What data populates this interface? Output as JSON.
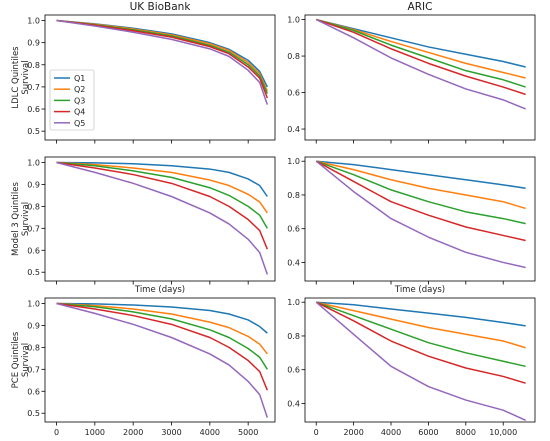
{
  "colors": {
    "Q1": "#1f77b4",
    "Q2": "#ff7f0e",
    "Q3": "#2ca02c",
    "Q4": "#d62728",
    "Q5": "#9467bd"
  },
  "chart_data": [
    {
      "type": "line",
      "column_title": "UK BioBank",
      "ylabel": "LDLC Quintiles\nSurvival",
      "xlabel": "",
      "xlim": [
        -300,
        5700
      ],
      "ylim": [
        0.46,
        1.025
      ],
      "yticks": [
        "0.5",
        "0.6",
        "0.7",
        "0.8",
        "0.9",
        "1.0"
      ],
      "xticks": [],
      "legend": "upper-left",
      "series": [
        {
          "name": "Q1",
          "x": [
            0,
            1000,
            2000,
            3000,
            4000,
            4500,
            5000,
            5300,
            5500
          ],
          "y": [
            1.0,
            0.985,
            0.965,
            0.94,
            0.9,
            0.87,
            0.82,
            0.77,
            0.7
          ]
        },
        {
          "name": "Q2",
          "x": [
            0,
            1000,
            2000,
            3000,
            4000,
            4500,
            5000,
            5300,
            5500
          ],
          "y": [
            1.0,
            0.983,
            0.962,
            0.935,
            0.895,
            0.865,
            0.81,
            0.76,
            0.68
          ]
        },
        {
          "name": "Q3",
          "x": [
            0,
            1000,
            2000,
            3000,
            4000,
            4500,
            5000,
            5300,
            5500
          ],
          "y": [
            1.0,
            0.981,
            0.958,
            0.93,
            0.888,
            0.857,
            0.8,
            0.75,
            0.67
          ]
        },
        {
          "name": "Q4",
          "x": [
            0,
            1000,
            2000,
            3000,
            4000,
            4500,
            5000,
            5300,
            5500
          ],
          "y": [
            1.0,
            0.979,
            0.954,
            0.925,
            0.882,
            0.85,
            0.79,
            0.74,
            0.65
          ]
        },
        {
          "name": "Q5",
          "x": [
            0,
            1000,
            2000,
            3000,
            4000,
            4500,
            5000,
            5300,
            5500
          ],
          "y": [
            1.0,
            0.975,
            0.947,
            0.915,
            0.872,
            0.838,
            0.775,
            0.72,
            0.62
          ]
        }
      ]
    },
    {
      "type": "line",
      "column_title": "ARIC",
      "ylabel": "",
      "xlabel": "",
      "xlim": [
        -600,
        11700
      ],
      "ylim": [
        0.34,
        1.025
      ],
      "yticks": [
        "0.4",
        "0.6",
        "0.8",
        "1.0"
      ],
      "xticks": [],
      "legend": "",
      "series": [
        {
          "name": "Q1",
          "x": [
            0,
            2000,
            4000,
            6000,
            8000,
            10000,
            11200
          ],
          "y": [
            1.0,
            0.95,
            0.9,
            0.85,
            0.81,
            0.77,
            0.74
          ]
        },
        {
          "name": "Q2",
          "x": [
            0,
            2000,
            4000,
            6000,
            8000,
            10000,
            11200
          ],
          "y": [
            1.0,
            0.945,
            0.88,
            0.82,
            0.76,
            0.71,
            0.68
          ]
        },
        {
          "name": "Q3",
          "x": [
            0,
            2000,
            4000,
            6000,
            8000,
            10000,
            11200
          ],
          "y": [
            1.0,
            0.94,
            0.86,
            0.79,
            0.72,
            0.67,
            0.63
          ]
        },
        {
          "name": "Q4",
          "x": [
            0,
            2000,
            4000,
            6000,
            8000,
            10000,
            11200
          ],
          "y": [
            1.0,
            0.93,
            0.84,
            0.76,
            0.69,
            0.63,
            0.59
          ]
        },
        {
          "name": "Q5",
          "x": [
            0,
            2000,
            4000,
            6000,
            8000,
            10000,
            11200
          ],
          "y": [
            1.0,
            0.9,
            0.79,
            0.7,
            0.62,
            0.56,
            0.51
          ]
        }
      ]
    },
    {
      "type": "line",
      "column_title": "",
      "ylabel": "Model 3 Quintiles\nSurvival",
      "xlabel": "Time (days)",
      "xlim": [
        -300,
        5700
      ],
      "ylim": [
        0.46,
        1.025
      ],
      "yticks": [
        "0.5",
        "0.6",
        "0.7",
        "0.8",
        "0.9",
        "1.0"
      ],
      "xticks": [],
      "legend": "",
      "series": [
        {
          "name": "Q1",
          "x": [
            0,
            1000,
            2000,
            3000,
            4000,
            4500,
            5000,
            5300,
            5500
          ],
          "y": [
            1.0,
            0.998,
            0.994,
            0.985,
            0.97,
            0.955,
            0.925,
            0.895,
            0.845
          ]
        },
        {
          "name": "Q2",
          "x": [
            0,
            1000,
            2000,
            3000,
            4000,
            4500,
            5000,
            5300,
            5500
          ],
          "y": [
            1.0,
            0.99,
            0.975,
            0.955,
            0.92,
            0.895,
            0.855,
            0.82,
            0.77
          ]
        },
        {
          "name": "Q3",
          "x": [
            0,
            1000,
            2000,
            3000,
            4000,
            4500,
            5000,
            5300,
            5500
          ],
          "y": [
            1.0,
            0.985,
            0.962,
            0.932,
            0.885,
            0.85,
            0.8,
            0.76,
            0.7
          ]
        },
        {
          "name": "Q4",
          "x": [
            0,
            1000,
            2000,
            3000,
            4000,
            4500,
            5000,
            5300,
            5500
          ],
          "y": [
            1.0,
            0.975,
            0.945,
            0.905,
            0.845,
            0.8,
            0.74,
            0.69,
            0.605
          ]
        },
        {
          "name": "Q5",
          "x": [
            0,
            1000,
            2000,
            3000,
            4000,
            4500,
            5000,
            5300,
            5500
          ],
          "y": [
            1.0,
            0.955,
            0.905,
            0.845,
            0.77,
            0.72,
            0.65,
            0.59,
            0.49
          ]
        }
      ]
    },
    {
      "type": "line",
      "column_title": "",
      "ylabel": "",
      "xlabel": "Time (days)",
      "xlim": [
        -600,
        11700
      ],
      "ylim": [
        0.29,
        1.025
      ],
      "yticks": [
        "0.4",
        "0.6",
        "0.8",
        "1.0"
      ],
      "xticks": [],
      "legend": "",
      "series": [
        {
          "name": "Q1",
          "x": [
            0,
            2000,
            4000,
            6000,
            8000,
            10000,
            11200
          ],
          "y": [
            1.0,
            0.98,
            0.95,
            0.92,
            0.89,
            0.86,
            0.84
          ]
        },
        {
          "name": "Q2",
          "x": [
            0,
            2000,
            4000,
            6000,
            8000,
            10000,
            11200
          ],
          "y": [
            1.0,
            0.95,
            0.89,
            0.84,
            0.8,
            0.76,
            0.72
          ]
        },
        {
          "name": "Q3",
          "x": [
            0,
            2000,
            4000,
            6000,
            8000,
            10000,
            11200
          ],
          "y": [
            1.0,
            0.92,
            0.83,
            0.76,
            0.7,
            0.66,
            0.63
          ]
        },
        {
          "name": "Q4",
          "x": [
            0,
            2000,
            4000,
            6000,
            8000,
            10000,
            11200
          ],
          "y": [
            1.0,
            0.88,
            0.76,
            0.68,
            0.61,
            0.56,
            0.53
          ]
        },
        {
          "name": "Q5",
          "x": [
            0,
            2000,
            4000,
            6000,
            8000,
            10000,
            11200
          ],
          "y": [
            1.0,
            0.82,
            0.66,
            0.55,
            0.46,
            0.4,
            0.37
          ]
        }
      ]
    },
    {
      "type": "line",
      "column_title": "",
      "ylabel": "PCE Quintiles\nSurvival",
      "xlabel": "",
      "xlim": [
        -300,
        5700
      ],
      "ylim": [
        0.46,
        1.025
      ],
      "yticks": [
        "0.5",
        "0.6",
        "0.7",
        "0.8",
        "0.9",
        "1.0"
      ],
      "xticks": [
        "0",
        "1000",
        "2000",
        "3000",
        "4000",
        "5000"
      ],
      "xtick_values": [
        0,
        1000,
        2000,
        3000,
        4000,
        5000
      ],
      "legend": "",
      "series": [
        {
          "name": "Q1",
          "x": [
            0,
            1000,
            2000,
            3000,
            4000,
            4500,
            5000,
            5300,
            5500
          ],
          "y": [
            1.0,
            0.998,
            0.993,
            0.984,
            0.968,
            0.952,
            0.925,
            0.895,
            0.865
          ]
        },
        {
          "name": "Q2",
          "x": [
            0,
            1000,
            2000,
            3000,
            4000,
            4500,
            5000,
            5300,
            5500
          ],
          "y": [
            1.0,
            0.99,
            0.975,
            0.952,
            0.915,
            0.89,
            0.85,
            0.815,
            0.77
          ]
        },
        {
          "name": "Q3",
          "x": [
            0,
            1000,
            2000,
            3000,
            4000,
            4500,
            5000,
            5300,
            5500
          ],
          "y": [
            1.0,
            0.985,
            0.962,
            0.93,
            0.88,
            0.845,
            0.795,
            0.755,
            0.7
          ]
        },
        {
          "name": "Q4",
          "x": [
            0,
            1000,
            2000,
            3000,
            4000,
            4500,
            5000,
            5300,
            5500
          ],
          "y": [
            1.0,
            0.975,
            0.945,
            0.905,
            0.845,
            0.8,
            0.74,
            0.69,
            0.605
          ]
        },
        {
          "name": "Q5",
          "x": [
            0,
            1000,
            2000,
            3000,
            4000,
            4500,
            5000,
            5300,
            5500
          ],
          "y": [
            1.0,
            0.955,
            0.905,
            0.845,
            0.77,
            0.72,
            0.645,
            0.585,
            0.48
          ]
        }
      ]
    },
    {
      "type": "line",
      "column_title": "",
      "ylabel": "",
      "xlabel": "",
      "xlim": [
        -600,
        11700
      ],
      "ylim": [
        0.29,
        1.025
      ],
      "yticks": [
        "0.4",
        "0.6",
        "0.8",
        "1.0"
      ],
      "xticks": [
        "0",
        "2000",
        "4000",
        "6000",
        "8000",
        "10,000"
      ],
      "xtick_values": [
        0,
        2000,
        4000,
        6000,
        8000,
        10000
      ],
      "legend": "",
      "series": [
        {
          "name": "Q1",
          "x": [
            0,
            2000,
            4000,
            6000,
            8000,
            10000,
            11200
          ],
          "y": [
            1.0,
            0.985,
            0.96,
            0.935,
            0.91,
            0.88,
            0.86
          ]
        },
        {
          "name": "Q2",
          "x": [
            0,
            2000,
            4000,
            6000,
            8000,
            10000,
            11200
          ],
          "y": [
            1.0,
            0.95,
            0.9,
            0.85,
            0.81,
            0.77,
            0.73
          ]
        },
        {
          "name": "Q3",
          "x": [
            0,
            2000,
            4000,
            6000,
            8000,
            10000,
            11200
          ],
          "y": [
            1.0,
            0.92,
            0.84,
            0.76,
            0.7,
            0.65,
            0.62
          ]
        },
        {
          "name": "Q4",
          "x": [
            0,
            2000,
            4000,
            6000,
            8000,
            10000,
            11200
          ],
          "y": [
            1.0,
            0.89,
            0.77,
            0.68,
            0.61,
            0.56,
            0.52
          ]
        },
        {
          "name": "Q5",
          "x": [
            0,
            2000,
            4000,
            6000,
            8000,
            10000,
            11200
          ],
          "y": [
            1.0,
            0.81,
            0.62,
            0.5,
            0.42,
            0.36,
            0.3
          ]
        }
      ]
    }
  ]
}
